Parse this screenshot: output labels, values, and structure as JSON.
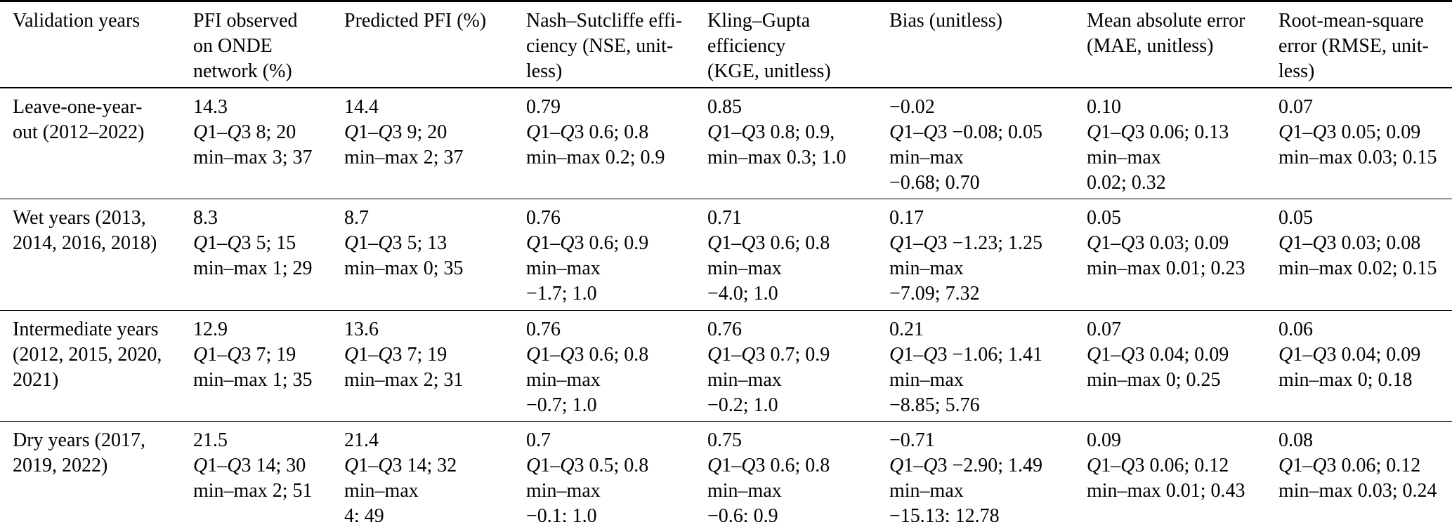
{
  "table": {
    "columns": [
      {
        "id": "validation-years",
        "header_lines": [
          "Validation years"
        ]
      },
      {
        "id": "pfi-observed",
        "header_lines": [
          "PFI observed",
          "on ONDE",
          "network (%)"
        ]
      },
      {
        "id": "predicted-pfi",
        "header_lines": [
          "Predicted PFI (%)"
        ]
      },
      {
        "id": "nse",
        "header_lines": [
          "Nash–Sutcliffe effi-",
          "ciency (NSE, unit-",
          "less)"
        ]
      },
      {
        "id": "kge",
        "header_lines": [
          "Kling–Gupta",
          "efficiency",
          "(KGE, unitless)"
        ]
      },
      {
        "id": "bias",
        "header_lines": [
          "Bias (unitless)"
        ]
      },
      {
        "id": "mae",
        "header_lines": [
          "Mean absolute error",
          "(MAE, unitless)"
        ]
      },
      {
        "id": "rmse",
        "header_lines": [
          "Root-mean-square",
          "error (RMSE, unit-",
          "less)"
        ]
      }
    ],
    "rows": [
      {
        "label_lines": [
          "Leave-one-year-",
          "out (2012–2022)"
        ],
        "cells": [
          {
            "lines": [
              "14.3",
              "Q1–Q3 8; 20",
              "min–max 3; 37"
            ]
          },
          {
            "lines": [
              "14.4",
              "Q1–Q3 9; 20",
              "min–max 2; 37"
            ]
          },
          {
            "lines": [
              "0.79",
              "Q1–Q3 0.6; 0.8",
              "min–max 0.2; 0.9"
            ]
          },
          {
            "lines": [
              "0.85",
              "Q1–Q3 0.8; 0.9,",
              "min–max 0.3; 1.0"
            ]
          },
          {
            "lines": [
              "−0.02",
              "Q1–Q3 −0.08; 0.05",
              "min–max",
              "−0.68; 0.70"
            ]
          },
          {
            "lines": [
              "0.10",
              "Q1–Q3 0.06; 0.13",
              "min–max",
              "0.02; 0.32"
            ]
          },
          {
            "lines": [
              "0.07",
              "Q1–Q3 0.05; 0.09",
              "min–max 0.03; 0.15"
            ]
          }
        ]
      },
      {
        "label_lines": [
          "Wet years (2013,",
          "2014, 2016, 2018)"
        ],
        "cells": [
          {
            "lines": [
              "8.3",
              "Q1–Q3 5; 15",
              "min–max 1; 29"
            ]
          },
          {
            "lines": [
              "8.7",
              "Q1–Q3 5; 13",
              "min–max 0; 35"
            ]
          },
          {
            "lines": [
              "0.76",
              "Q1–Q3 0.6; 0.9",
              "min–max",
              "−1.7; 1.0"
            ]
          },
          {
            "lines": [
              "0.71",
              "Q1–Q3 0.6; 0.8",
              "min–max",
              "−4.0; 1.0"
            ]
          },
          {
            "lines": [
              "0.17",
              "Q1–Q3 −1.23; 1.25",
              "min–max",
              "−7.09; 7.32"
            ]
          },
          {
            "lines": [
              "0.05",
              "Q1–Q3 0.03; 0.09",
              "min–max 0.01; 0.23"
            ]
          },
          {
            "lines": [
              "0.05",
              "Q1–Q3 0.03; 0.08",
              "min–max 0.02; 0.15"
            ]
          }
        ]
      },
      {
        "label_lines": [
          "Intermediate years",
          "(2012, 2015, 2020,",
          "2021)"
        ],
        "cells": [
          {
            "lines": [
              "12.9",
              "Q1–Q3 7; 19",
              "min–max 1; 35"
            ]
          },
          {
            "lines": [
              "13.6",
              "Q1–Q3 7; 19",
              "min–max 2; 31"
            ]
          },
          {
            "lines": [
              "0.76",
              "Q1–Q3 0.6; 0.8",
              "min–max",
              "−0.7; 1.0"
            ]
          },
          {
            "lines": [
              "0.76",
              "Q1–Q3 0.7; 0.9",
              "min–max",
              "−0.2; 1.0"
            ]
          },
          {
            "lines": [
              "0.21",
              "Q1–Q3 −1.06; 1.41",
              "min–max",
              "−8.85; 5.76"
            ]
          },
          {
            "lines": [
              "0.07",
              "Q1–Q3 0.04; 0.09",
              "min–max 0; 0.25"
            ]
          },
          {
            "lines": [
              "0.06",
              "Q1–Q3 0.04; 0.09",
              "min–max 0; 0.18"
            ]
          }
        ]
      },
      {
        "label_lines": [
          "Dry years (2017,",
          "2019, 2022)"
        ],
        "cells": [
          {
            "lines": [
              "21.5",
              "Q1–Q3 14; 30",
              "min–max 2; 51"
            ]
          },
          {
            "lines": [
              "21.4",
              "Q1–Q3 14; 32",
              "min–max",
              "4; 49"
            ]
          },
          {
            "lines": [
              "0.7",
              "Q1–Q3 0.5; 0.8",
              "min–max",
              "−0.1; 1.0"
            ]
          },
          {
            "lines": [
              "0.75",
              "Q1–Q3 0.6; 0.8",
              "min–max",
              "−0.6; 0.9"
            ]
          },
          {
            "lines": [
              "−0.71",
              "Q1–Q3 −2.90; 1.49",
              "min–max",
              "−15.13; 12.78"
            ]
          },
          {
            "lines": [
              "0.09",
              "Q1–Q3 0.06; 0.12",
              "min–max 0.01; 0.43"
            ]
          },
          {
            "lines": [
              "0.08",
              "Q1–Q3 0.06; 0.12",
              "min–max 0.03; 0.24"
            ]
          }
        ]
      }
    ]
  }
}
